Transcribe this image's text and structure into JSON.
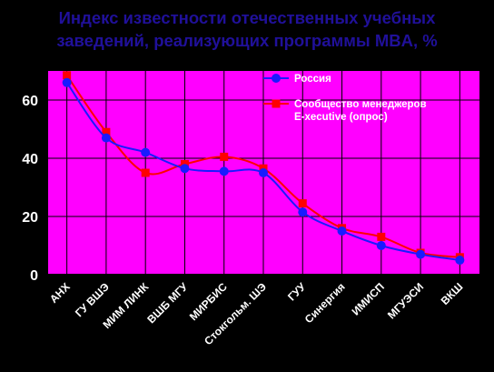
{
  "chart_data": {
    "type": "line",
    "title": [
      "Индекс известности отечественных учебных",
      "заведений, реализующих программы MBA, %"
    ],
    "categories": [
      "АНХ",
      "ГУ ВШЭ",
      "МИМ ЛИНК",
      "ВШБ МГУ",
      "МИРБИС",
      "Стокгольм. ШЭ",
      "ГУУ",
      "Синергия",
      "ИМИСП",
      "МГУЭСИ",
      "ВКШ"
    ],
    "ylim": [
      0,
      70
    ],
    "yticks": [
      0,
      20,
      40,
      60
    ],
    "grid": true,
    "legend_position": "top-right",
    "series": [
      {
        "name": "Россия",
        "color": "#1a1aff",
        "marker": "circle",
        "values": [
          66,
          47,
          42,
          36.5,
          35.5,
          35,
          21.5,
          15,
          10,
          7,
          5
        ]
      },
      {
        "name_lines": [
          "Сообщество менеджеров",
          "E-xecutive (опрос)"
        ],
        "color": "#ff0000",
        "marker": "square",
        "values": [
          68.5,
          49,
          35,
          38,
          40.5,
          36.5,
          24.5,
          16,
          13,
          7.5,
          6
        ]
      }
    ]
  },
  "colors": {
    "background": "#000000",
    "plot_area": "#ff00ff",
    "title": "#20109a",
    "text": "#ffffff",
    "axis": "#000000",
    "gridline": "#000000"
  }
}
